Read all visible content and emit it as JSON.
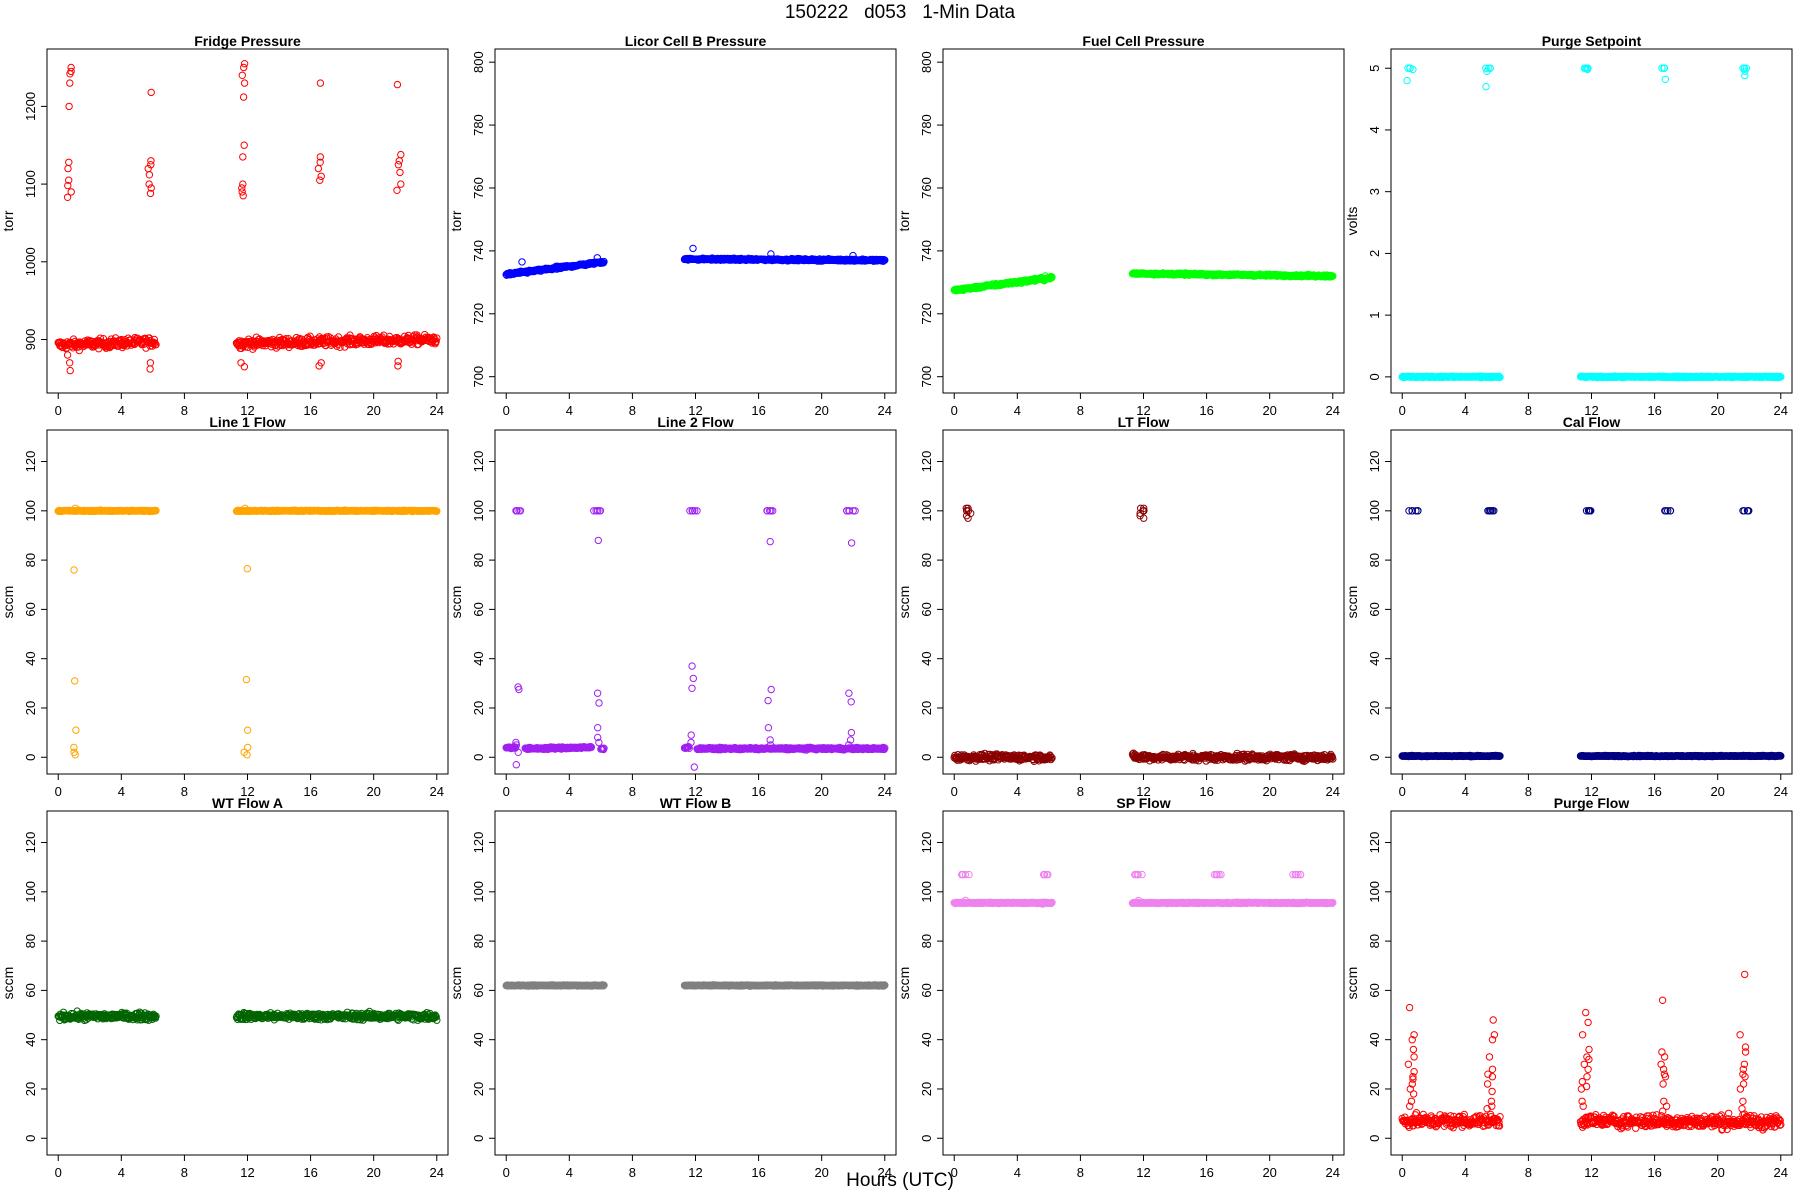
{
  "page_title": "150222   d053   1-Min Data",
  "x_axis_title": "Hours (UTC)",
  "chart_data": [
    {
      "type": "scatter",
      "title": "Fridge Pressure",
      "ylabel": "torr",
      "color": "#ff0000",
      "xlim": [
        0,
        24
      ],
      "ylim": [
        840,
        1265
      ],
      "xticks": [
        0,
        4,
        8,
        12,
        16,
        20,
        24
      ],
      "yticks": [
        900,
        1000,
        1100,
        1200
      ],
      "segments": [
        {
          "x0": 0.0,
          "x1": 6.2,
          "y0": 893,
          "y1": 897,
          "noise": 6
        },
        {
          "x0": 11.3,
          "x1": 24.0,
          "y0": 895,
          "y1": 900,
          "noise": 6
        }
      ],
      "clusters": [
        {
          "x": 0.7,
          "ys": [
            1250,
            1245,
            1242,
            1230,
            1200,
            1128,
            1120,
            1105,
            1098,
            1090,
            1083,
            880,
            870,
            860
          ]
        },
        {
          "x": 5.8,
          "ys": [
            1218,
            1130,
            1125,
            1120,
            1112,
            1100,
            1095,
            1088,
            870,
            862
          ]
        },
        {
          "x": 11.7,
          "ys": [
            1255,
            1250,
            1240,
            1230,
            1212,
            1150,
            1135,
            1100,
            1095,
            1090,
            1085,
            870,
            865
          ]
        },
        {
          "x": 16.6,
          "ys": [
            1230,
            1135,
            1128,
            1120,
            1110,
            1105,
            870,
            866
          ]
        },
        {
          "x": 21.6,
          "ys": [
            1228,
            1138,
            1130,
            1125,
            1115,
            1100,
            1092,
            872,
            866
          ]
        }
      ]
    },
    {
      "type": "scatter",
      "title": "Licor Cell B Pressure",
      "ylabel": "torr",
      "color": "#0000ff",
      "xlim": [
        0,
        24
      ],
      "ylim": [
        697,
        802
      ],
      "xticks": [
        0,
        4,
        8,
        12,
        16,
        20,
        24
      ],
      "yticks": [
        700,
        720,
        740,
        760,
        780,
        800
      ],
      "segments": [
        {
          "x0": 0.0,
          "x1": 6.2,
          "y0": 732.5,
          "y1": 736.5,
          "noise": 0.4
        },
        {
          "x0": 11.3,
          "x1": 24.0,
          "y0": 737.4,
          "y1": 737.0,
          "noise": 0.3
        }
      ],
      "clusters": [
        {
          "x": 0.9,
          "ys": [
            736.5
          ]
        },
        {
          "x": 5.8,
          "ys": [
            737.8
          ]
        },
        {
          "x": 11.8,
          "ys": [
            740.8
          ]
        },
        {
          "x": 16.8,
          "ys": [
            739
          ]
        },
        {
          "x": 22.0,
          "ys": [
            738.5
          ]
        }
      ]
    },
    {
      "type": "scatter",
      "title": "Fuel Cell Pressure",
      "ylabel": "torr",
      "color": "#00ff00",
      "xlim": [
        0,
        24
      ],
      "ylim": [
        697,
        802
      ],
      "xticks": [
        0,
        4,
        8,
        12,
        16,
        20,
        24
      ],
      "yticks": [
        700,
        720,
        740,
        760,
        780,
        800
      ],
      "segments": [
        {
          "x0": 0.0,
          "x1": 6.2,
          "y0": 727.5,
          "y1": 731.5,
          "noise": 0.4
        },
        {
          "x0": 11.3,
          "x1": 24.0,
          "y0": 732.8,
          "y1": 732.0,
          "noise": 0.3
        }
      ],
      "clusters": [
        {
          "x": 5.8,
          "ys": [
            730.5,
            732
          ]
        }
      ]
    },
    {
      "type": "scatter",
      "title": "Purge Setpoint",
      "ylabel": "volts",
      "color": "#00ffff",
      "xlim": [
        0,
        24
      ],
      "ylim": [
        -0.15,
        5.2
      ],
      "xticks": [
        0,
        4,
        8,
        12,
        16,
        20,
        24
      ],
      "yticks": [
        0,
        1,
        2,
        3,
        4,
        5
      ],
      "segments": [
        {
          "x0": 0.0,
          "x1": 6.2,
          "y0": 0,
          "y1": 0,
          "noise": 0.01
        },
        {
          "x0": 11.3,
          "x1": 24.0,
          "y0": 0,
          "y1": 0,
          "noise": 0.01
        }
      ],
      "clusters": [
        {
          "x": 0.5,
          "ys": [
            5,
            5,
            5,
            4.98,
            4.8
          ],
          "spread": 0.4
        },
        {
          "x": 5.5,
          "ys": [
            5,
            5,
            5,
            4.95,
            4.7
          ],
          "spread": 0.4
        },
        {
          "x": 11.7,
          "ys": [
            5,
            5,
            5,
            5,
            4.98
          ],
          "spread": 0.4
        },
        {
          "x": 16.6,
          "ys": [
            5,
            5,
            5,
            4.82
          ],
          "spread": 0.3
        },
        {
          "x": 21.7,
          "ys": [
            5,
            5,
            5,
            4.95,
            4.88
          ],
          "spread": 0.3
        }
      ]
    },
    {
      "type": "scatter",
      "title": "Line 1 Flow",
      "ylabel": "sccm",
      "color": "#ffa500",
      "xlim": [
        0,
        24
      ],
      "ylim": [
        -4,
        130
      ],
      "xticks": [
        0,
        4,
        8,
        12,
        16,
        20,
        24
      ],
      "yticks": [
        0,
        20,
        40,
        60,
        80,
        100,
        120
      ],
      "segments": [
        {
          "x0": 0.0,
          "x1": 6.2,
          "y0": 100,
          "y1": 100,
          "noise": 0.2
        },
        {
          "x0": 11.3,
          "x1": 24.0,
          "y0": 100,
          "y1": 100,
          "noise": 0.2
        }
      ],
      "clusters": [
        {
          "x": 1.0,
          "ys": [
            101,
            76,
            31,
            11,
            4,
            2,
            1
          ]
        },
        {
          "x": 11.9,
          "ys": [
            101,
            76.5,
            31.5,
            11,
            4,
            2,
            1
          ]
        }
      ]
    },
    {
      "type": "scatter",
      "title": "Line 2 Flow",
      "ylabel": "sccm",
      "color": "#a020f0",
      "xlim": [
        0,
        24
      ],
      "ylim": [
        -4,
        130
      ],
      "xticks": [
        0,
        4,
        8,
        12,
        16,
        20,
        24
      ],
      "yticks": [
        0,
        20,
        40,
        60,
        80,
        100,
        120
      ],
      "segments": [
        {
          "x0": 0.0,
          "x1": 0.6,
          "y0": 4,
          "y1": 4,
          "noise": 0.4
        },
        {
          "x0": 1.2,
          "x1": 5.4,
          "y0": 3.5,
          "y1": 4,
          "noise": 0.4
        },
        {
          "x0": 6.0,
          "x1": 6.2,
          "y0": 3.5,
          "y1": 3.5,
          "noise": 0.4
        },
        {
          "x0": 11.3,
          "x1": 11.6,
          "y0": 4,
          "y1": 4,
          "noise": 0.4
        },
        {
          "x0": 12.1,
          "x1": 24.0,
          "y0": 3.5,
          "y1": 3.5,
          "noise": 0.4
        }
      ],
      "clusters": [
        {
          "x": 0.7,
          "ys": [
            100,
            100,
            100,
            100,
            100,
            100
          ],
          "spread": 0.5
        },
        {
          "x": 5.8,
          "ys": [
            100,
            100,
            100,
            100,
            100,
            100
          ],
          "spread": 0.6
        },
        {
          "x": 11.8,
          "ys": [
            100,
            100,
            100,
            100,
            100,
            100
          ],
          "spread": 0.6
        },
        {
          "x": 16.7,
          "ys": [
            100,
            100,
            100,
            100,
            100
          ],
          "spread": 0.5
        },
        {
          "x": 21.8,
          "ys": [
            100,
            100,
            100,
            100,
            100,
            100
          ],
          "spread": 0.7
        },
        {
          "x": 0.7,
          "ys": [
            27.5,
            28.5,
            6,
            5,
            -3,
            2
          ]
        },
        {
          "x": 5.9,
          "ys": [
            88,
            26,
            22,
            12,
            8,
            6
          ]
        },
        {
          "x": 11.8,
          "ys": [
            37,
            32,
            28,
            9,
            6,
            -4
          ]
        },
        {
          "x": 16.7,
          "ys": [
            87.5,
            27.5,
            23,
            12,
            7,
            5
          ]
        },
        {
          "x": 21.8,
          "ys": [
            87,
            26,
            22.5,
            10,
            7,
            5
          ]
        }
      ]
    },
    {
      "type": "scatter",
      "title": "LT Flow",
      "ylabel": "sccm",
      "color": "#8b0000",
      "xlim": [
        0,
        24
      ],
      "ylim": [
        -4,
        130
      ],
      "xticks": [
        0,
        4,
        8,
        12,
        16,
        20,
        24
      ],
      "yticks": [
        0,
        20,
        40,
        60,
        80,
        100,
        120
      ],
      "segments": [
        {
          "x0": 0.0,
          "x1": 6.2,
          "y0": 0,
          "y1": 0,
          "noise": 1.3
        },
        {
          "x0": 11.3,
          "x1": 24.0,
          "y0": 0,
          "y1": 0,
          "noise": 1.3
        }
      ],
      "clusters": [
        {
          "x": 0.9,
          "ys": [
            101,
            100,
            100,
            99,
            98,
            97,
            101,
            100
          ],
          "spread": 0.3
        },
        {
          "x": 11.9,
          "ys": [
            101,
            100,
            100,
            99,
            98,
            97,
            101,
            100
          ],
          "spread": 0.3
        }
      ]
    },
    {
      "type": "scatter",
      "title": "Cal Flow",
      "ylabel": "sccm",
      "color": "#000080",
      "xlim": [
        0,
        24
      ],
      "ylim": [
        -4,
        130
      ],
      "xticks": [
        0,
        4,
        8,
        12,
        16,
        20,
        24
      ],
      "yticks": [
        0,
        20,
        40,
        60,
        80,
        100,
        120
      ],
      "segments": [
        {
          "x0": 0.0,
          "x1": 6.2,
          "y0": 0.5,
          "y1": 0.5,
          "noise": 0.2
        },
        {
          "x0": 11.3,
          "x1": 24.0,
          "y0": 0.5,
          "y1": 0.5,
          "noise": 0.2
        }
      ],
      "clusters": [
        {
          "x": 0.7,
          "ys": [
            100,
            100,
            100,
            100,
            100,
            100
          ],
          "spread": 0.6
        },
        {
          "x": 5.7,
          "ys": [
            100,
            100,
            100,
            100,
            100,
            100
          ],
          "spread": 0.6
        },
        {
          "x": 11.7,
          "ys": [
            100,
            100,
            100,
            100,
            100,
            100
          ],
          "spread": 0.6
        },
        {
          "x": 16.8,
          "ys": [
            100,
            100,
            100,
            100,
            100
          ],
          "spread": 0.5
        },
        {
          "x": 21.8,
          "ys": [
            100,
            100,
            100,
            100,
            100,
            100
          ],
          "spread": 0.6
        }
      ]
    },
    {
      "type": "scatter",
      "title": "WT Flow A",
      "ylabel": "sccm",
      "color": "#006400",
      "xlim": [
        0,
        24
      ],
      "ylim": [
        -4,
        130
      ],
      "xticks": [
        0,
        4,
        8,
        12,
        16,
        20,
        24
      ],
      "yticks": [
        0,
        20,
        40,
        60,
        80,
        100,
        120
      ],
      "segments": [
        {
          "x0": 0.0,
          "x1": 6.2,
          "y0": 49.5,
          "y1": 49.5,
          "noise": 1.4
        },
        {
          "x0": 11.3,
          "x1": 24.0,
          "y0": 49.5,
          "y1": 49.5,
          "noise": 1.4
        }
      ],
      "clusters": []
    },
    {
      "type": "scatter",
      "title": "WT Flow B",
      "ylabel": "sccm",
      "color": "#808080",
      "xlim": [
        0,
        24
      ],
      "ylim": [
        -4,
        130
      ],
      "xticks": [
        0,
        4,
        8,
        12,
        16,
        20,
        24
      ],
      "yticks": [
        0,
        20,
        40,
        60,
        80,
        100,
        120
      ],
      "segments": [
        {
          "x0": 0.0,
          "x1": 6.2,
          "y0": 62,
          "y1": 62,
          "noise": 0.2
        },
        {
          "x0": 11.3,
          "x1": 24.0,
          "y0": 62,
          "y1": 62,
          "noise": 0.2
        }
      ],
      "clusters": []
    },
    {
      "type": "scatter",
      "title": "SP Flow",
      "ylabel": "sccm",
      "color": "#ee82ee",
      "xlim": [
        0,
        24
      ],
      "ylim": [
        -4,
        130
      ],
      "xticks": [
        0,
        4,
        8,
        12,
        16,
        20,
        24
      ],
      "yticks": [
        0,
        20,
        40,
        60,
        80,
        100,
        120
      ],
      "segments": [
        {
          "x0": 0.0,
          "x1": 6.2,
          "y0": 95.5,
          "y1": 95.5,
          "noise": 0.2
        },
        {
          "x0": 11.3,
          "x1": 24.0,
          "y0": 95.5,
          "y1": 95.5,
          "noise": 0.2
        }
      ],
      "clusters": [
        {
          "x": 0.7,
          "ys": [
            107,
            107,
            107,
            107,
            107,
            96.5
          ],
          "spread": 0.5
        },
        {
          "x": 5.7,
          "ys": [
            107,
            107,
            107,
            107,
            107,
            107,
            95
          ],
          "spread": 0.7
        },
        {
          "x": 11.7,
          "ys": [
            107,
            107,
            107,
            107,
            107,
            96.5
          ],
          "spread": 0.6
        },
        {
          "x": 16.7,
          "ys": [
            107,
            107,
            107,
            107,
            107
          ],
          "spread": 0.5
        },
        {
          "x": 21.7,
          "ys": [
            107,
            107,
            107,
            107,
            107,
            107
          ],
          "spread": 0.6
        }
      ]
    },
    {
      "type": "scatter",
      "title": "Purge Flow",
      "ylabel": "sccm",
      "color": "#ff0000",
      "xlim": [
        0,
        24
      ],
      "ylim": [
        -4,
        130
      ],
      "xticks": [
        0,
        4,
        8,
        12,
        16,
        20,
        24
      ],
      "yticks": [
        0,
        20,
        40,
        60,
        80,
        100,
        120
      ],
      "segments": [
        {
          "x0": 0.0,
          "x1": 6.2,
          "y0": 7,
          "y1": 7,
          "noise": 2.5
        },
        {
          "x0": 11.3,
          "x1": 24.0,
          "y0": 7,
          "y1": 6.5,
          "noise": 2.5
        }
      ],
      "clusters": [
        {
          "x": 0.6,
          "ys": [
            53,
            42,
            40,
            36,
            33,
            30,
            27,
            25,
            24,
            22,
            20,
            18,
            15,
            13
          ],
          "spread": 0.5
        },
        {
          "x": 5.6,
          "ys": [
            48,
            42,
            40,
            33,
            28,
            26,
            25,
            22,
            19,
            15,
            13,
            12
          ],
          "spread": 0.5
        },
        {
          "x": 11.6,
          "ys": [
            51,
            47,
            42,
            36,
            33,
            32,
            30,
            28,
            25,
            23,
            21,
            20,
            15,
            13
          ],
          "spread": 0.5
        },
        {
          "x": 16.6,
          "ys": [
            56,
            35,
            33,
            30,
            28,
            26,
            25,
            22,
            15,
            13,
            11
          ],
          "spread": 0.4
        },
        {
          "x": 21.6,
          "ys": [
            66.5,
            42,
            37,
            35,
            30,
            28,
            26,
            25,
            22,
            20,
            15,
            12
          ],
          "spread": 0.5
        }
      ]
    }
  ]
}
